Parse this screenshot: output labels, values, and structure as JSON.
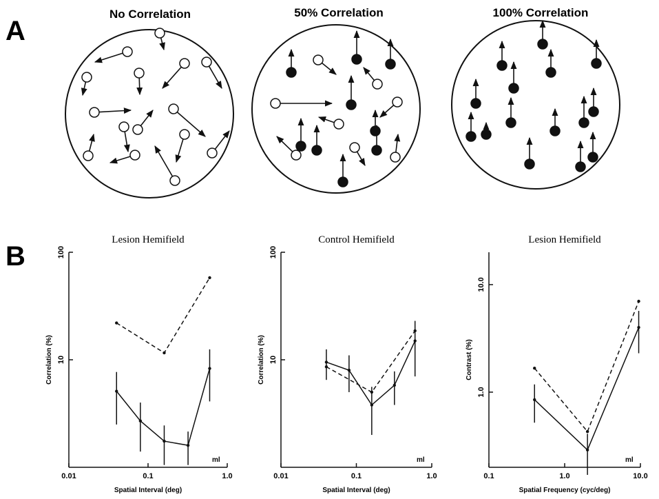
{
  "figure": {
    "panel_a": {
      "label": "A",
      "titles": [
        "No Correlation",
        "50% Correlation",
        "100% Correlation"
      ]
    },
    "panel_b": {
      "label": "B"
    }
  },
  "chart_data": [
    {
      "type": "line",
      "title": "Lesion Hemifield",
      "x_label": "Spatial Interval (deg)",
      "y_label": "Correlation (%)",
      "annotation": "ml",
      "xscale": "log",
      "yscale": "log",
      "xlim": [
        0.01,
        1
      ],
      "ylim": [
        1,
        100
      ],
      "xticks": [
        0.01,
        0.1,
        {
          "value": 1,
          "label": "1.0"
        }
      ],
      "yticks": [
        10,
        100
      ],
      "series": [
        {
          "color": "#111111",
          "line_style": "solid",
          "x": [
            0.04,
            0.08,
            0.16,
            0.32,
            0.6
          ],
          "values": [
            5.1,
            2.7,
            1.75,
            1.6,
            8.3
          ],
          "errors": [
            2.6,
            1.3,
            0.7,
            0.55,
            4.2
          ]
        },
        {
          "color": "#111111",
          "line_style": "dashed",
          "x": [
            0.04,
            0.16,
            0.6
          ],
          "values": [
            22,
            11.6,
            58
          ]
        }
      ]
    },
    {
      "type": "line",
      "title": "Control Hemifield",
      "x_label": "Spatial Interval (deg)",
      "y_label": "Correlation (%)",
      "annotation": "ml",
      "xscale": "log",
      "yscale": "log",
      "xlim": [
        0.01,
        1
      ],
      "ylim": [
        1,
        100
      ],
      "xticks": [
        0.01,
        0.1,
        {
          "value": 1,
          "label": "1.0"
        }
      ],
      "yticks": [
        10,
        100
      ],
      "series": [
        {
          "color": "#111111",
          "line_style": "solid",
          "x": [
            0.04,
            0.08,
            0.16,
            0.32,
            0.6
          ],
          "values": [
            9.5,
            8,
            3.8,
            5.8,
            15
          ],
          "errors": [
            3,
            3,
            1.8,
            2,
            8
          ]
        },
        {
          "color": "#111111",
          "line_style": "dashed",
          "x": [
            0.04,
            0.16,
            0.6
          ],
          "values": [
            8.6,
            5,
            18.6
          ]
        }
      ]
    },
    {
      "type": "line",
      "title": "Lesion Hemifield",
      "x_label": "Spatial Frequency (cyc/deg)",
      "y_label": "Contrast (%)",
      "annotation": "ml",
      "xscale": "log",
      "yscale": "log",
      "xlim": [
        0.1,
        10
      ],
      "ylim": [
        0.2,
        20
      ],
      "xticks": [
        0.1,
        {
          "value": 1,
          "label": "1.0"
        },
        {
          "value": 10,
          "label": "10.0"
        }
      ],
      "yticks": [
        {
          "value": 1,
          "label": "1.0"
        },
        {
          "value": 10,
          "label": "10.0"
        }
      ],
      "series": [
        {
          "color": "#111111",
          "line_style": "solid",
          "x": [
            0.4,
            2,
            9.5
          ],
          "values": [
            0.85,
            0.29,
            4.0
          ],
          "errors": [
            0.33,
            0.12,
            1.7
          ]
        },
        {
          "color": "#111111",
          "line_style": "dashed",
          "x": [
            0.4,
            2,
            9.5
          ],
          "values": [
            1.67,
            0.43,
            7
          ]
        }
      ]
    }
  ]
}
